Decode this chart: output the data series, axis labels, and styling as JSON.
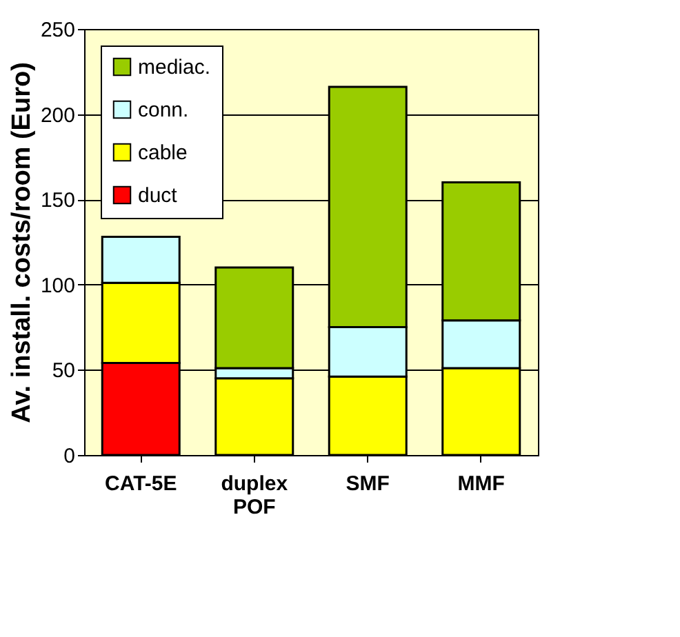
{
  "chart_data": {
    "type": "bar",
    "stacked": true,
    "ylabel": "Av. install. costs/room (Euro)",
    "categories": [
      "CAT-5E",
      "duplex POF",
      "SMF",
      "MMF"
    ],
    "series": [
      {
        "name": "duct",
        "color": "#ff0000",
        "values": [
          54,
          null,
          null,
          null
        ]
      },
      {
        "name": "cable",
        "color": "#ffff00",
        "values": [
          47,
          45,
          46,
          51
        ]
      },
      {
        "name": "conn.",
        "color": "#ccffff",
        "values": [
          27,
          6,
          29,
          28
        ]
      },
      {
        "name": "mediac.",
        "color": "#99cc00",
        "values": [
          null,
          59,
          141,
          81
        ]
      }
    ],
    "ylim": [
      0,
      250
    ],
    "yticks": [
      0,
      50,
      100,
      150,
      200,
      250
    ],
    "grid": "y",
    "legend": "top left"
  }
}
